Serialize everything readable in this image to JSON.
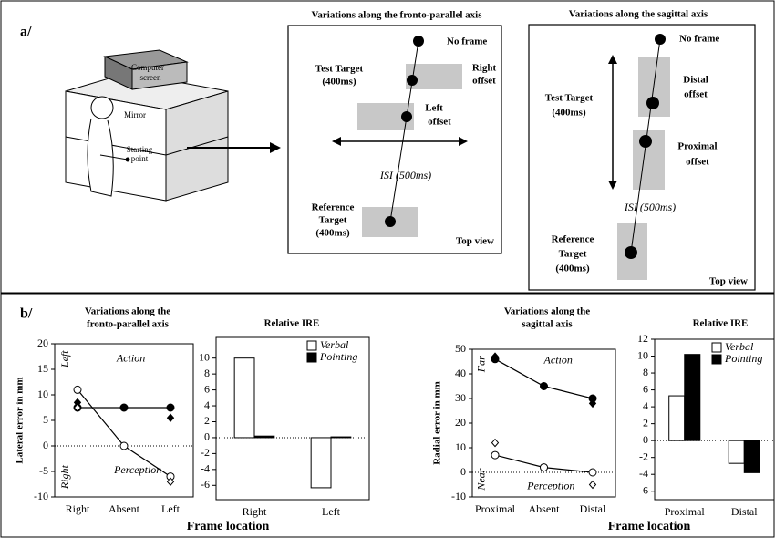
{
  "panel_a": {
    "label": "a/",
    "illustration": {
      "screen": [
        "Computer",
        "screen"
      ],
      "mirror": "Mirror",
      "start": [
        "Starting",
        "point"
      ]
    },
    "frontal": {
      "title": "Variations along the fronto-parallel axis",
      "no_frame": "No frame",
      "test_target": [
        "Test Target",
        "(400ms)"
      ],
      "right_offset": [
        "Right",
        "offset"
      ],
      "left_offset": [
        "Left",
        "offset"
      ],
      "isi": "ISI (500ms)",
      "reference_target": [
        "Reference",
        "Target",
        "(400ms)"
      ],
      "top_view": "Top view"
    },
    "sagittal": {
      "title": "Variations along the sagittal axis",
      "no_frame": "No frame",
      "distal_offset": [
        "Distal",
        "offset"
      ],
      "test_target": [
        "Test Target",
        "(400ms)"
      ],
      "proximal_offset": [
        "Proximal",
        "offset"
      ],
      "isi": "ISI (500ms)",
      "reference_target": [
        "Reference",
        "Target",
        "(400ms)"
      ],
      "top_view": "Top view"
    }
  },
  "panel_b": {
    "label": "b/"
  },
  "chart_data": [
    {
      "type": "line",
      "title": [
        "Variations along the",
        "fronto-parallel axis"
      ],
      "ylabel": "Lateral error in mm",
      "xlabel": "Frame location",
      "annotations": [
        "Left",
        "Action",
        "Right",
        "Perception"
      ],
      "categories": [
        "Right",
        "Absent",
        "Left"
      ],
      "ylim": [
        -10,
        20
      ],
      "yticks": [
        -10,
        -5,
        0,
        5,
        10,
        15,
        20
      ],
      "zero_line": true,
      "series": [
        {
          "values": [
            7.5,
            7.5,
            7.5
          ],
          "color": "#000000",
          "marker": "circle",
          "line": true
        },
        {
          "values": [
            11,
            0,
            -6
          ],
          "color": "#ffffff",
          "marker": "circle",
          "line": true
        },
        {
          "values": [
            8.5,
            null,
            5.5
          ],
          "color": "#000000",
          "marker": "diamond",
          "line": false
        },
        {
          "values": [
            7.5,
            null,
            -7
          ],
          "color": "#ffffff",
          "marker": "diamond",
          "line": false
        }
      ]
    },
    {
      "type": "bar",
      "title": [
        "Relative IRE"
      ],
      "categories": [
        "Right",
        "Left"
      ],
      "ylim": [
        -7.8,
        12.6
      ],
      "yticks": [
        -6,
        -4,
        -2,
        0,
        2,
        4,
        6,
        8,
        10
      ],
      "zero_line": true,
      "legend": "top-right",
      "series": [
        {
          "name": "Verbal",
          "color": "#ffffff",
          "values": [
            10,
            -6.3
          ]
        },
        {
          "name": "Pointing",
          "color": "#000000",
          "values": [
            0.2,
            0.1
          ]
        }
      ]
    },
    {
      "type": "line",
      "title": [
        "Variations along the",
        "sagittal axis"
      ],
      "ylabel": "Radial error in mm",
      "xlabel": "Frame location",
      "annotations": [
        "Far",
        "Action",
        "Near",
        "Perception"
      ],
      "categories": [
        "Proximal",
        "Absent",
        "Distal"
      ],
      "ylim": [
        -10,
        50
      ],
      "yticks": [
        -10,
        0,
        10,
        20,
        30,
        40,
        50
      ],
      "zero_line": true,
      "series": [
        {
          "values": [
            46,
            35,
            30
          ],
          "color": "#000000",
          "marker": "circle",
          "line": true
        },
        {
          "values": [
            7,
            2,
            0
          ],
          "color": "#ffffff",
          "marker": "circle",
          "line": true
        },
        {
          "values": [
            47,
            null,
            28
          ],
          "color": "#000000",
          "marker": "diamond",
          "line": false
        },
        {
          "values": [
            12,
            null,
            -5
          ],
          "color": "#ffffff",
          "marker": "diamond",
          "line": false
        }
      ]
    },
    {
      "type": "bar",
      "title": [
        "Relative IRE"
      ],
      "categories": [
        "Proximal",
        "Distal"
      ],
      "ylim": [
        -7,
        12
      ],
      "yticks": [
        -6,
        -4,
        -2,
        0,
        2,
        4,
        6,
        8,
        10,
        12
      ],
      "zero_line": true,
      "legend": "top-right",
      "series": [
        {
          "name": "Verbal",
          "color": "#ffffff",
          "values": [
            5.3,
            -2.7
          ]
        },
        {
          "name": "Pointing",
          "color": "#000000",
          "values": [
            10.2,
            -3.8
          ]
        }
      ]
    }
  ]
}
